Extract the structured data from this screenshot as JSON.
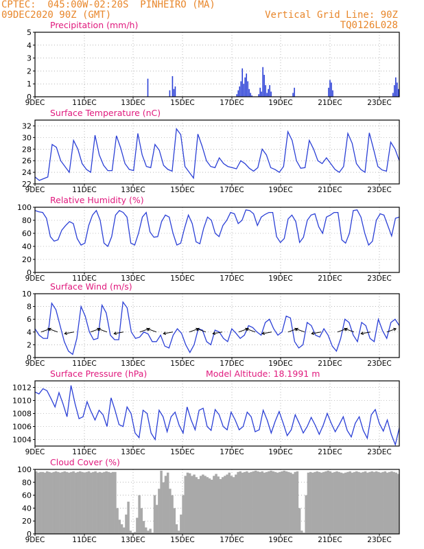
{
  "header": {
    "line1": "CPTEC:  045:00W-02:20S  PINHEIRO (MA)",
    "line2_left": "09DEC2020 90Z (GMT)",
    "line2_right": "Vertical Grid Line: 90Z",
    "line3_right": "TQ0126L028"
  },
  "x_ticks": [
    "9DEC",
    "11DEC",
    "13DEC",
    "15DEC",
    "17DEC",
    "19DEC",
    "21DEC",
    "23DEC"
  ],
  "colors": {
    "header": "#e8862a",
    "title": "#e0197d",
    "line": "#2a3fd6",
    "cloud": "#a9a9a9",
    "grid": "#888888"
  },
  "chart_data": [
    {
      "type": "bar",
      "title": "Precipitation (mm/h)",
      "ylim": [
        0,
        5
      ],
      "yticks": [
        "0",
        "1",
        "2",
        "3",
        "4",
        "5"
      ],
      "values": [
        0,
        0,
        0,
        0,
        0,
        0,
        0,
        0,
        0,
        0,
        0,
        0,
        0,
        0,
        0,
        0,
        0,
        0,
        0,
        0,
        0,
        0,
        0,
        0,
        0,
        0,
        0,
        0,
        0,
        0,
        0,
        0,
        0,
        0,
        0,
        0,
        0,
        0,
        0,
        0,
        0,
        0,
        0,
        0,
        0,
        0,
        0,
        0,
        0,
        0,
        0,
        0,
        0,
        0,
        0,
        0,
        0,
        0,
        0,
        0,
        0,
        0,
        0,
        0,
        0,
        0,
        0,
        0,
        0,
        0,
        0,
        0,
        0,
        0,
        0,
        0,
        0,
        0,
        0,
        0,
        0,
        0,
        1.4,
        0,
        0,
        0,
        0,
        0,
        0,
        0,
        0,
        0,
        0,
        0,
        0,
        0,
        0,
        0,
        0.5,
        0,
        1.6,
        0.6,
        0.8,
        0,
        0,
        0,
        0,
        0,
        0,
        0,
        0,
        0,
        0,
        0,
        0,
        0,
        0,
        0,
        0,
        0,
        0,
        0,
        0,
        0,
        0,
        0,
        0,
        0,
        0,
        0,
        0,
        0,
        0,
        0,
        0,
        0,
        0,
        0,
        0,
        0,
        0,
        0,
        0,
        0,
        0,
        0,
        0,
        0.2,
        0.5,
        0.8,
        1.2,
        2.2,
        1.0,
        1.5,
        1.8,
        1.2,
        0.6,
        0.3,
        0.1,
        0,
        0,
        0,
        0,
        0.2,
        0.7,
        0.4,
        2.3,
        1.7,
        0.9,
        0.3,
        0.6,
        0.9,
        0.4,
        0,
        0,
        0,
        0,
        0,
        0,
        0,
        0,
        0,
        0,
        0,
        0,
        0,
        0,
        0,
        0.3,
        0.7,
        0,
        0,
        0,
        0,
        0,
        0,
        0,
        0,
        0,
        0,
        0,
        0,
        0,
        0,
        0,
        0,
        0,
        0,
        0,
        0,
        0,
        0,
        0,
        0,
        0.7,
        1.3,
        1.1,
        0.5,
        0,
        0,
        0,
        0,
        0,
        0,
        0,
        0,
        0,
        0,
        0,
        0,
        0,
        0,
        0,
        0,
        0,
        0,
        0,
        0,
        0,
        0,
        0,
        0,
        0,
        0,
        0,
        0,
        0,
        0,
        0,
        0,
        0,
        0,
        0,
        0,
        0,
        0,
        0,
        0,
        0,
        0,
        0,
        0.3,
        0.9,
        1.5,
        1.1,
        0.6
      ]
    },
    {
      "type": "line",
      "title": "Surface Temperature (nC)",
      "ylim": [
        22,
        33
      ],
      "yticks": [
        "22",
        "24",
        "26",
        "28",
        "30",
        "32"
      ],
      "values": [
        23.2,
        22.6,
        22.9,
        23.2,
        28.8,
        28.3,
        26.0,
        25.0,
        24.0,
        29.5,
        28.0,
        25.5,
        24.5,
        24.0,
        30.4,
        27.0,
        25.2,
        24.3,
        24.3,
        30.3,
        28.2,
        25.5,
        24.5,
        24.3,
        30.7,
        27.0,
        25.0,
        24.8,
        28.8,
        27.8,
        25.2,
        24.5,
        24.2,
        31.5,
        30.5,
        25.0,
        24.0,
        23.0,
        30.6,
        28.5,
        26.0,
        25.0,
        24.8,
        26.5,
        25.5,
        25.0,
        24.8,
        24.6,
        26.0,
        25.5,
        24.7,
        24.2,
        24.8,
        28.0,
        27.0,
        24.8,
        24.5,
        24.0,
        25.0,
        31.0,
        29.5,
        26.0,
        24.7,
        24.8,
        29.5,
        28.0,
        26.0,
        25.5,
        26.5,
        25.5,
        24.5,
        24.0,
        25.0,
        30.7,
        29.0,
        25.5,
        24.5,
        24.0,
        30.8,
        28.0,
        25.0,
        24.4,
        24.2,
        29.2,
        28.0,
        26.0
      ]
    },
    {
      "type": "line",
      "title": "Relative Humidity (%)",
      "ylim": [
        0,
        100
      ],
      "yticks": [
        "0",
        "20",
        "40",
        "60",
        "80",
        "100"
      ],
      "values": [
        95,
        93,
        92,
        83,
        55,
        48,
        50,
        65,
        72,
        78,
        75,
        52,
        42,
        45,
        72,
        88,
        95,
        80,
        45,
        40,
        55,
        88,
        95,
        92,
        85,
        45,
        42,
        60,
        85,
        92,
        62,
        54,
        55,
        78,
        88,
        85,
        60,
        42,
        45,
        68,
        88,
        75,
        47,
        44,
        68,
        85,
        80,
        60,
        55,
        72,
        80,
        92,
        90,
        75,
        80,
        96,
        95,
        90,
        72,
        85,
        89,
        92,
        92,
        55,
        46,
        52,
        82,
        88,
        78,
        46,
        54,
        80,
        88,
        90,
        70,
        60,
        85,
        88,
        92,
        92,
        50,
        45,
        60,
        95,
        96,
        85,
        60,
        42,
        48,
        80,
        90,
        88,
        72,
        56,
        83,
        85
      ]
    },
    {
      "type": "line",
      "title": "Surface Wind (m/s)",
      "ylim": [
        0,
        10
      ],
      "yticks": [
        "0",
        "2",
        "4",
        "6",
        "8",
        "10"
      ],
      "values": [
        4.5,
        3.5,
        3.0,
        3.0,
        8.5,
        7.5,
        5.0,
        2.5,
        1.0,
        0.5,
        3.0,
        8.0,
        6.5,
        4.0,
        2.8,
        3.0,
        8.2,
        7.0,
        3.5,
        2.8,
        2.8,
        8.7,
        7.8,
        4.0,
        3.0,
        3.2,
        4.0,
        3.7,
        2.5,
        2.5,
        3.5,
        1.8,
        1.5,
        3.5,
        4.5,
        3.8,
        2.0,
        0.8,
        2.0,
        4.5,
        4.3,
        2.5,
        2.0,
        4.3,
        4.0,
        3.0,
        2.5,
        4.5,
        3.8,
        3.0,
        3.5,
        5.0,
        4.7,
        4.0,
        3.5,
        5.5,
        6.0,
        4.5,
        3.5,
        4.0,
        6.5,
        6.2,
        2.5,
        1.5,
        2.0,
        5.5,
        5.0,
        3.5,
        3.2,
        4.5,
        3.5,
        1.8,
        1.0,
        3.0,
        6.0,
        5.5,
        3.5,
        2.5,
        5.5,
        5.0,
        3.0,
        2.5,
        6.0,
        4.2,
        3.0,
        5.5,
        6.0,
        5.0
      ]
    },
    {
      "type": "line",
      "title": "Surface Pressure (hPa)",
      "annotation": "Model Altitude: 18.1991 m",
      "ylim": [
        1003,
        1013
      ],
      "yticks": [
        "1004",
        "1006",
        "1008",
        "1010",
        "1012"
      ],
      "values": [
        1011.3,
        1011.0,
        1011.8,
        1011.5,
        1010.3,
        1009.0,
        1011.2,
        1009.5,
        1007.5,
        1012.3,
        1009.5,
        1007.2,
        1007.5,
        1009.8,
        1008.3,
        1007.0,
        1008.5,
        1007.8,
        1006.0,
        1010.4,
        1008.5,
        1006.3,
        1006.0,
        1009.0,
        1008.0,
        1005.0,
        1004.3,
        1008.5,
        1008.0,
        1005.0,
        1004.0,
        1008.5,
        1007.5,
        1005.2,
        1007.5,
        1008.2,
        1006.2,
        1005.0,
        1009.0,
        1007.0,
        1005.5,
        1008.5,
        1008.8,
        1006.0,
        1005.4,
        1008.6,
        1007.8,
        1006.0,
        1005.5,
        1008.2,
        1007.0,
        1005.5,
        1006.0,
        1008.2,
        1007.5,
        1005.2,
        1005.5,
        1008.5,
        1007.0,
        1005.0,
        1006.8,
        1008.3,
        1006.5,
        1004.6,
        1005.5,
        1007.8,
        1006.5,
        1005.0,
        1006.0,
        1007.4,
        1006.2,
        1004.8,
        1006.2,
        1008.0,
        1006.5,
        1005.2,
        1006.3,
        1007.5,
        1005.4,
        1004.4,
        1006.5,
        1007.5,
        1005.4,
        1004.2,
        1007.8,
        1008.6,
        1006.5,
        1005.3,
        1007.0,
        1004.8,
        1003.2,
        1005.8
      ]
    },
    {
      "type": "area",
      "title": "Cloud Cover (%)",
      "ylim": [
        0,
        100
      ],
      "yticks": [
        "0",
        "20",
        "40",
        "60",
        "80",
        "100"
      ],
      "values": [
        97,
        95,
        96,
        96,
        95,
        97,
        96,
        95,
        96,
        97,
        96,
        95,
        96,
        97,
        96,
        95,
        96,
        97,
        95,
        96,
        97,
        96,
        95,
        96,
        97,
        95,
        96,
        97,
        95,
        96,
        95,
        96,
        97,
        96,
        95,
        96,
        96,
        40,
        22,
        15,
        10,
        30,
        50,
        5,
        2,
        3,
        25,
        60,
        40,
        20,
        10,
        5,
        8,
        2,
        60,
        45,
        70,
        98,
        80,
        90,
        95,
        70,
        60,
        40,
        15,
        5,
        30,
        60,
        90,
        95,
        94,
        90,
        92,
        88,
        85,
        90,
        92,
        90,
        88,
        86,
        84,
        90,
        93,
        89,
        85,
        88,
        90,
        92,
        95,
        90,
        88,
        92,
        96,
        97,
        95,
        96,
        97,
        95,
        96,
        97,
        98,
        97,
        96,
        97,
        95,
        96,
        97,
        98,
        97,
        96,
        95,
        96,
        97,
        98,
        97,
        96,
        95,
        93,
        96,
        97,
        40,
        5,
        2,
        60,
        95,
        96,
        95,
        96,
        97,
        96,
        95,
        96,
        97,
        98,
        97,
        95,
        96,
        97,
        96,
        95,
        94,
        95,
        96,
        97,
        95,
        96,
        97,
        96,
        95,
        96,
        97,
        95,
        96,
        97,
        96,
        97,
        96,
        95,
        96,
        97,
        95,
        96,
        97,
        96,
        95,
        93
      ]
    }
  ]
}
